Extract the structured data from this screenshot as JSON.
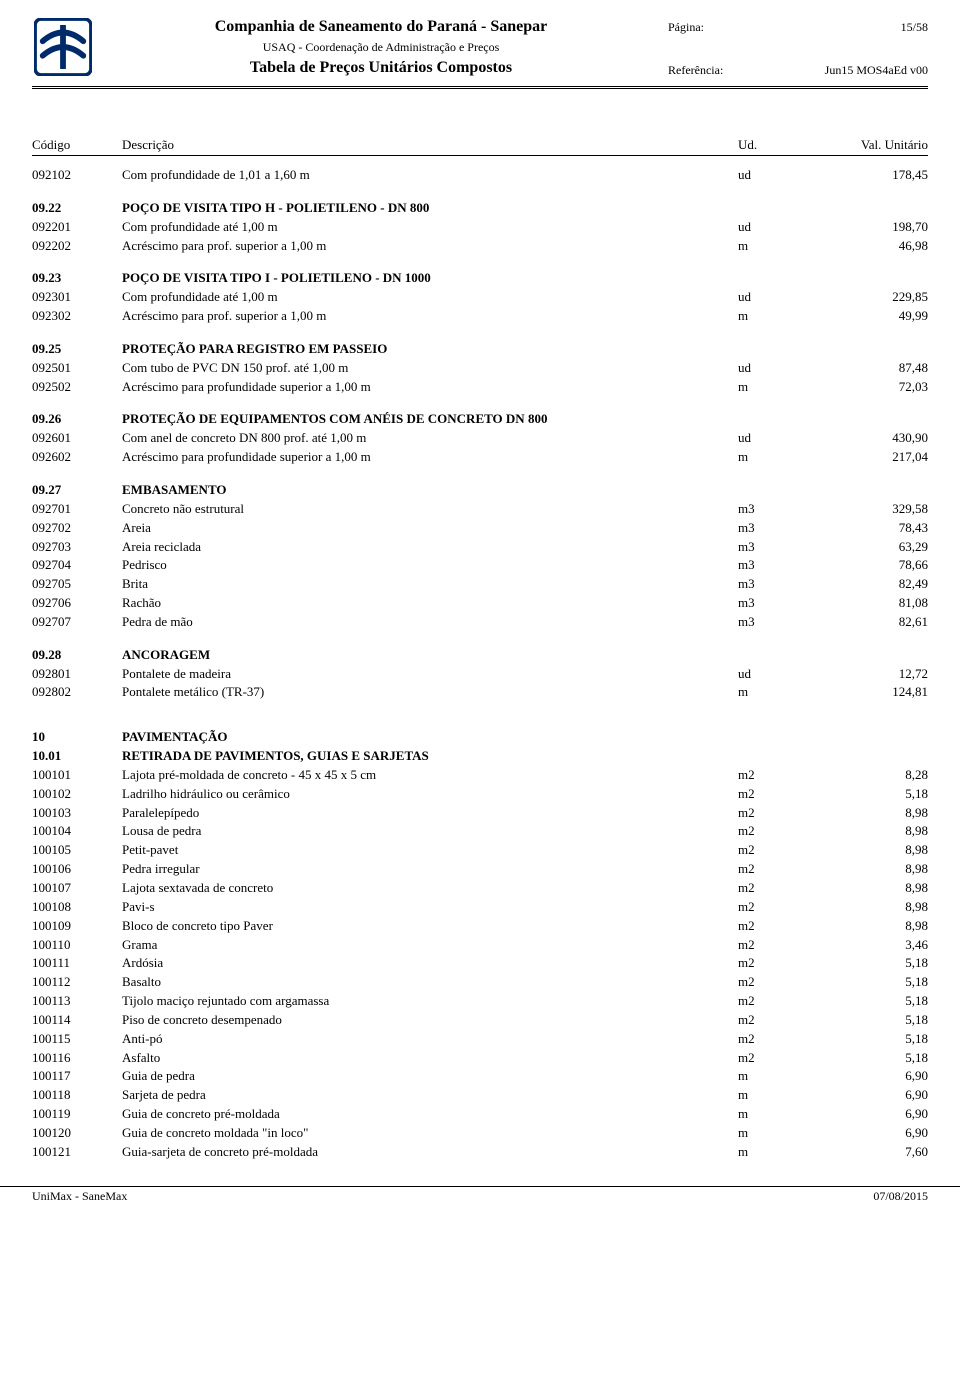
{
  "header": {
    "company": "Companhia de Saneamento do Paraná - Sanepar",
    "dept": "USAQ - Coordenação de Administração e Preços",
    "title": "Tabela de Preços Unitários Compostos",
    "page_label": "Página:",
    "page_value": "15/58",
    "ref_label": "Referência:",
    "ref_value": "Jun15 MOS4aEd v00"
  },
  "columns": {
    "code": "Código",
    "desc": "Descrição",
    "ud": "Ud.",
    "val": "Val. Unitário"
  },
  "rows": [
    {
      "code": "092102",
      "desc": "Com profundidade de 1,01 a 1,60 m",
      "ud": "ud",
      "val": "178,45"
    },
    {
      "gap": true
    },
    {
      "code": "09.22",
      "desc": "POÇO DE VISITA TIPO H - POLIETILENO - DN 800",
      "bold": true
    },
    {
      "code": "092201",
      "desc": "Com profundidade até 1,00 m",
      "ud": "ud",
      "val": "198,70"
    },
    {
      "code": "092202",
      "desc": "Acréscimo para prof. superior a 1,00 m",
      "ud": "m",
      "val": "46,98"
    },
    {
      "gap": true
    },
    {
      "code": "09.23",
      "desc": "POÇO DE VISITA TIPO I - POLIETILENO - DN 1000",
      "bold": true
    },
    {
      "code": "092301",
      "desc": "Com profundidade até 1,00 m",
      "ud": "ud",
      "val": "229,85"
    },
    {
      "code": "092302",
      "desc": "Acréscimo para prof. superior a 1,00 m",
      "ud": "m",
      "val": "49,99"
    },
    {
      "gap": true
    },
    {
      "code": "09.25",
      "desc": "PROTEÇÃO PARA REGISTRO EM PASSEIO",
      "bold": true
    },
    {
      "code": "092501",
      "desc": "Com tubo de PVC DN 150 prof. até 1,00 m",
      "ud": "ud",
      "val": "87,48"
    },
    {
      "code": "092502",
      "desc": "Acréscimo para profundidade superior a 1,00 m",
      "ud": "m",
      "val": "72,03"
    },
    {
      "gap": true
    },
    {
      "code": "09.26",
      "desc": "PROTEÇÃO DE EQUIPAMENTOS COM ANÉIS DE CONCRETO DN 800",
      "bold": true
    },
    {
      "code": "092601",
      "desc": "Com anel de concreto DN 800 prof. até 1,00 m",
      "ud": "ud",
      "val": "430,90"
    },
    {
      "code": "092602",
      "desc": "Acréscimo para profundidade superior a 1,00 m",
      "ud": "m",
      "val": "217,04"
    },
    {
      "gap": true
    },
    {
      "code": "09.27",
      "desc": "EMBASAMENTO",
      "bold": true
    },
    {
      "code": "092701",
      "desc": "Concreto não estrutural",
      "ud": "m3",
      "val": "329,58"
    },
    {
      "code": "092702",
      "desc": "Areia",
      "ud": "m3",
      "val": "78,43"
    },
    {
      "code": "092703",
      "desc": "Areia reciclada",
      "ud": "m3",
      "val": "63,29"
    },
    {
      "code": "092704",
      "desc": "Pedrisco",
      "ud": "m3",
      "val": "78,66"
    },
    {
      "code": "092705",
      "desc": "Brita",
      "ud": "m3",
      "val": "82,49"
    },
    {
      "code": "092706",
      "desc": "Rachão",
      "ud": "m3",
      "val": "81,08"
    },
    {
      "code": "092707",
      "desc": "Pedra de mão",
      "ud": "m3",
      "val": "82,61"
    },
    {
      "gap": true
    },
    {
      "code": "09.28",
      "desc": "ANCORAGEM",
      "bold": true
    },
    {
      "code": "092801",
      "desc": "Pontalete de madeira",
      "ud": "ud",
      "val": "12,72"
    },
    {
      "code": "092802",
      "desc": "Pontalete metálico (TR-37)",
      "ud": "m",
      "val": "124,81"
    },
    {
      "biggap": true
    },
    {
      "code": "10",
      "desc": "PAVIMENTAÇÃO",
      "bold": true
    },
    {
      "code": "10.01",
      "desc": "RETIRADA DE PAVIMENTOS, GUIAS E SARJETAS",
      "bold": true
    },
    {
      "code": "100101",
      "desc": "Lajota pré-moldada de concreto - 45 x 45 x 5 cm",
      "ud": "m2",
      "val": "8,28"
    },
    {
      "code": "100102",
      "desc": "Ladrilho hidráulico ou cerâmico",
      "ud": "m2",
      "val": "5,18"
    },
    {
      "code": "100103",
      "desc": "Paralelepípedo",
      "ud": "m2",
      "val": "8,98"
    },
    {
      "code": "100104",
      "desc": "Lousa de pedra",
      "ud": "m2",
      "val": "8,98"
    },
    {
      "code": "100105",
      "desc": "Petit-pavet",
      "ud": "m2",
      "val": "8,98"
    },
    {
      "code": "100106",
      "desc": "Pedra irregular",
      "ud": "m2",
      "val": "8,98"
    },
    {
      "code": "100107",
      "desc": "Lajota sextavada de concreto",
      "ud": "m2",
      "val": "8,98"
    },
    {
      "code": "100108",
      "desc": "Pavi-s",
      "ud": "m2",
      "val": "8,98"
    },
    {
      "code": "100109",
      "desc": "Bloco de concreto tipo Paver",
      "ud": "m2",
      "val": "8,98"
    },
    {
      "code": "100110",
      "desc": "Grama",
      "ud": "m2",
      "val": "3,46"
    },
    {
      "code": "100111",
      "desc": "Ardósia",
      "ud": "m2",
      "val": "5,18"
    },
    {
      "code": "100112",
      "desc": "Basalto",
      "ud": "m2",
      "val": "5,18"
    },
    {
      "code": "100113",
      "desc": "Tijolo maciço rejuntado com argamassa",
      "ud": "m2",
      "val": "5,18"
    },
    {
      "code": "100114",
      "desc": "Piso de concreto desempenado",
      "ud": "m2",
      "val": "5,18"
    },
    {
      "code": "100115",
      "desc": "Anti-pó",
      "ud": "m2",
      "val": "5,18"
    },
    {
      "code": "100116",
      "desc": "Asfalto",
      "ud": "m2",
      "val": "5,18"
    },
    {
      "code": "100117",
      "desc": "Guia de pedra",
      "ud": "m",
      "val": "6,90"
    },
    {
      "code": "100118",
      "desc": "Sarjeta de pedra",
      "ud": "m",
      "val": "6,90"
    },
    {
      "code": "100119",
      "desc": "Guia de concreto pré-moldada",
      "ud": "m",
      "val": "6,90"
    },
    {
      "code": "100120",
      "desc": "Guia de concreto moldada \"in loco\"",
      "ud": "m",
      "val": "6,90"
    },
    {
      "code": "100121",
      "desc": "Guia-sarjeta de concreto pré-moldada",
      "ud": "m",
      "val": "7,60"
    }
  ],
  "footer": {
    "left": "UniMax - SaneMax",
    "right": "07/08/2015"
  }
}
